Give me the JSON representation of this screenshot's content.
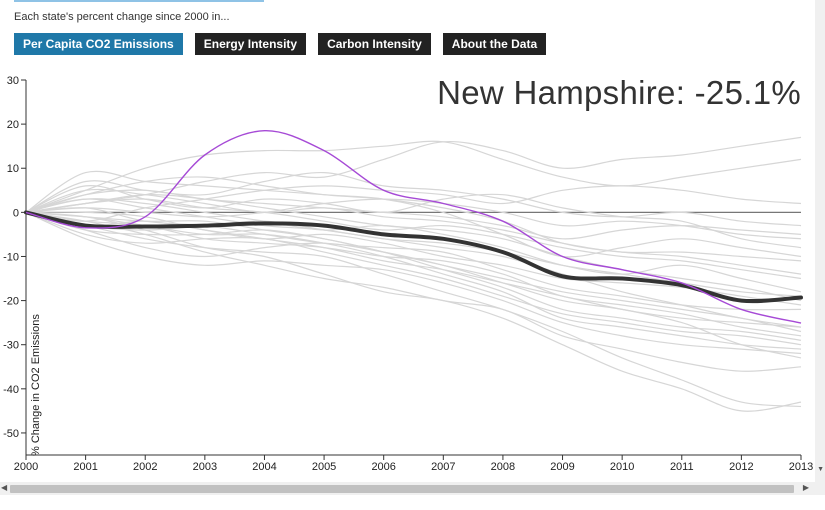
{
  "intro": "Each state's percent change since 2000 in...",
  "tabs": [
    {
      "label": "Per Capita CO2 Emissions",
      "active": true
    },
    {
      "label": "Energy Intensity",
      "active": false
    },
    {
      "label": "Carbon Intensity",
      "active": false
    },
    {
      "label": "About the Data",
      "active": false
    }
  ],
  "colors": {
    "active_tab": "#1f78a8",
    "tab": "#222222",
    "highlight": "#a64ad6",
    "average": "#333333",
    "states": "#d6d6d6",
    "zero": "#777777"
  },
  "icons": {
    "scroll_left": "triangle-left-icon",
    "scroll_right": "triangle-right-icon",
    "scroll_down": "triangle-down-icon"
  },
  "chart_data": {
    "type": "line",
    "title": "New Hampshire: -25.1%",
    "ylabel": "% Change in CO2 Emissions",
    "xlabel": "",
    "x": [
      2000,
      2001,
      2002,
      2003,
      2004,
      2005,
      2006,
      2007,
      2008,
      2009,
      2010,
      2011,
      2012,
      2013
    ],
    "xlim": [
      2000,
      2013
    ],
    "ylim": [
      -55,
      30
    ],
    "yticks": [
      30,
      20,
      10,
      0,
      -10,
      -20,
      -30,
      -40,
      -50
    ],
    "grid": false,
    "highlight": {
      "name": "New Hampshire",
      "values": [
        0,
        -3.5,
        -1,
        13,
        18.5,
        14,
        5,
        2,
        -2,
        -10,
        -13,
        -16,
        -22,
        -25.1
      ]
    },
    "average": {
      "values": [
        0,
        -3,
        -3.2,
        -3,
        -2.5,
        -3,
        -5,
        -6,
        -9,
        -14.5,
        -15,
        -16.5,
        -20,
        -19.3
      ]
    },
    "series": [
      {
        "values": [
          0,
          9,
          7,
          6,
          5,
          4,
          3,
          0,
          -5,
          -10,
          -8,
          -6,
          -8,
          -10
        ]
      },
      {
        "values": [
          0,
          5,
          10,
          13,
          14,
          14,
          15,
          16,
          12,
          8,
          6,
          8,
          10,
          12
        ]
      },
      {
        "values": [
          0,
          2,
          4,
          7,
          9,
          8,
          12,
          16,
          14,
          10,
          12,
          13,
          15,
          17
        ]
      },
      {
        "values": [
          0,
          -2,
          1,
          3,
          5,
          6,
          5,
          4,
          2,
          5,
          6,
          5,
          3,
          2
        ]
      },
      {
        "values": [
          0,
          1,
          0,
          -1,
          0,
          2,
          3,
          2,
          0,
          -3,
          -2,
          -3,
          -5,
          -6
        ]
      },
      {
        "values": [
          0,
          -3,
          -6,
          -8,
          -9,
          -10,
          -14,
          -18,
          -22,
          -27,
          -33,
          -38,
          -43,
          -44
        ]
      },
      {
        "values": [
          0,
          -1,
          -4,
          -8,
          -10,
          -14,
          -18,
          -20,
          -24,
          -30,
          -36,
          -40,
          -45,
          -43
        ]
      },
      {
        "values": [
          0,
          -2,
          -5,
          -9,
          -12,
          -15,
          -17,
          -20,
          -22,
          -28,
          -31,
          -34,
          -36,
          -35
        ]
      },
      {
        "values": [
          0,
          4,
          5,
          3,
          2,
          1,
          0,
          -1,
          -3,
          -6,
          -4,
          -3,
          -4,
          -5
        ]
      },
      {
        "values": [
          0,
          -4,
          -8,
          -10,
          -8,
          -7,
          -9,
          -12,
          -16,
          -20,
          -22,
          -25,
          -30,
          -33
        ]
      },
      {
        "values": [
          0,
          3,
          2,
          0,
          -2,
          -4,
          -3,
          -5,
          -8,
          -12,
          -14,
          -12,
          -15,
          -18
        ]
      },
      {
        "values": [
          0,
          -5,
          -7,
          -6,
          -6,
          -9,
          -12,
          -15,
          -19,
          -23,
          -25,
          -27,
          -28,
          -30
        ]
      },
      {
        "values": [
          0,
          6,
          3,
          1,
          3,
          2,
          0,
          3,
          4,
          1,
          -1,
          -2,
          -6,
          -8
        ]
      },
      {
        "values": [
          0,
          -1,
          -2,
          -2,
          -4,
          -6,
          -9,
          -12,
          -15,
          -18,
          -20,
          -22,
          -24,
          -27
        ]
      },
      {
        "values": [
          0,
          2,
          4,
          3,
          1,
          -1,
          -3,
          -4,
          -6,
          -10,
          -13,
          -15,
          -17,
          -20
        ]
      },
      {
        "values": [
          0,
          -3,
          -4,
          -3,
          -2,
          -4,
          -6,
          -8,
          -10,
          -14,
          -18,
          -21,
          -24,
          -26
        ]
      },
      {
        "values": [
          0,
          1,
          -2,
          -3,
          -5,
          -7,
          -8,
          -9,
          -13,
          -17,
          -19,
          -21,
          -22,
          -22
        ]
      },
      {
        "values": [
          0,
          -6,
          -10,
          -12,
          -11,
          -12,
          -13,
          -16,
          -20,
          -25,
          -28,
          -30,
          -31,
          -32
        ]
      },
      {
        "values": [
          0,
          4,
          7,
          8,
          6,
          4,
          3,
          1,
          -2,
          -7,
          -9,
          -10,
          -12,
          -14
        ]
      },
      {
        "values": [
          0,
          0,
          -1,
          -4,
          -6,
          -5,
          -7,
          -10,
          -12,
          -15,
          -16,
          -17,
          -19,
          -21
        ]
      },
      {
        "values": [
          0,
          -2,
          -3,
          -6,
          -7,
          -8,
          -10,
          -11,
          -14,
          -19,
          -21,
          -23,
          -26,
          -28
        ]
      },
      {
        "values": [
          0,
          7,
          5,
          4,
          7,
          9,
          6,
          5,
          3,
          0,
          -1,
          0,
          -2,
          -3
        ]
      },
      {
        "values": [
          0,
          -4,
          -5,
          -5,
          -4,
          -6,
          -9,
          -13,
          -17,
          -22,
          -24,
          -26,
          -27,
          -29
        ]
      },
      {
        "values": [
          0,
          3,
          1,
          -1,
          -3,
          -4,
          -6,
          -7,
          -9,
          -12,
          -14,
          -16,
          -18,
          -19
        ]
      },
      {
        "values": [
          0,
          -1,
          -3,
          -5,
          -5,
          -7,
          -10,
          -14,
          -18,
          -24,
          -26,
          -28,
          -30,
          -31
        ]
      },
      {
        "values": [
          0,
          2,
          3,
          1,
          0,
          -2,
          -4,
          -3,
          -5,
          -8,
          -10,
          -11,
          -13,
          -15
        ]
      },
      {
        "values": [
          0,
          -3,
          -2,
          -4,
          -6,
          -8,
          -11,
          -13,
          -16,
          -19,
          -22,
          -24,
          -25,
          -26
        ]
      },
      {
        "values": [
          0,
          5,
          4,
          2,
          0,
          1,
          -1,
          -2,
          -4,
          -7,
          -9,
          -9,
          -10,
          -11
        ]
      }
    ]
  }
}
